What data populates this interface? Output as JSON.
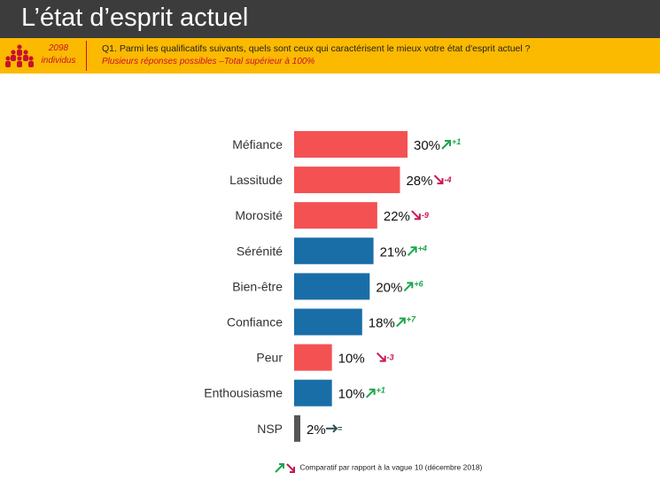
{
  "header": {
    "title": "L’état d’esprit actuel",
    "sample_count": "2098",
    "sample_unit": "individus",
    "question": "Q1. Parmi les qualificatifs suivants, quels sont ceux qui caractérisent le mieux votre état d'esprit actuel ?",
    "note": "Plusieurs réponses possibles –Total supérieur à 100%"
  },
  "legend": {
    "text": "Comparatif par rapport à la vague 10 (décembre 2018)"
  },
  "colors": {
    "negative": "#f45153",
    "positive": "#1a6ea8",
    "neutral": "#555555",
    "up": "#1aa64a",
    "down": "#c8174e",
    "flat": "#2f4f4f"
  },
  "chart_data": {
    "type": "bar",
    "orientation": "horizontal",
    "categories": [
      "Méfiance",
      "Lassitude",
      "Morosité",
      "Sérénité",
      "Bien-être",
      "Confiance",
      "Peur",
      "Enthousiasme",
      "NSP"
    ],
    "values": [
      30,
      28,
      22,
      21,
      20,
      18,
      10,
      10,
      2
    ],
    "value_labels": [
      "30%",
      "28%",
      "22%",
      "21%",
      "20%",
      "18%",
      "10%",
      "10%",
      "2%"
    ],
    "bar_groups": [
      "negative",
      "negative",
      "negative",
      "positive",
      "positive",
      "positive",
      "negative",
      "positive",
      "neutral"
    ],
    "deltas": [
      "+1",
      "-4",
      "-9",
      "+4",
      "+6",
      "+7",
      "-3",
      "+1",
      "="
    ],
    "delta_direction": [
      "up",
      "down",
      "down",
      "up",
      "up",
      "up",
      "down",
      "up",
      "flat"
    ],
    "unit": "%",
    "xlim": [
      0,
      30
    ],
    "grid": false,
    "legend": "bottom"
  }
}
